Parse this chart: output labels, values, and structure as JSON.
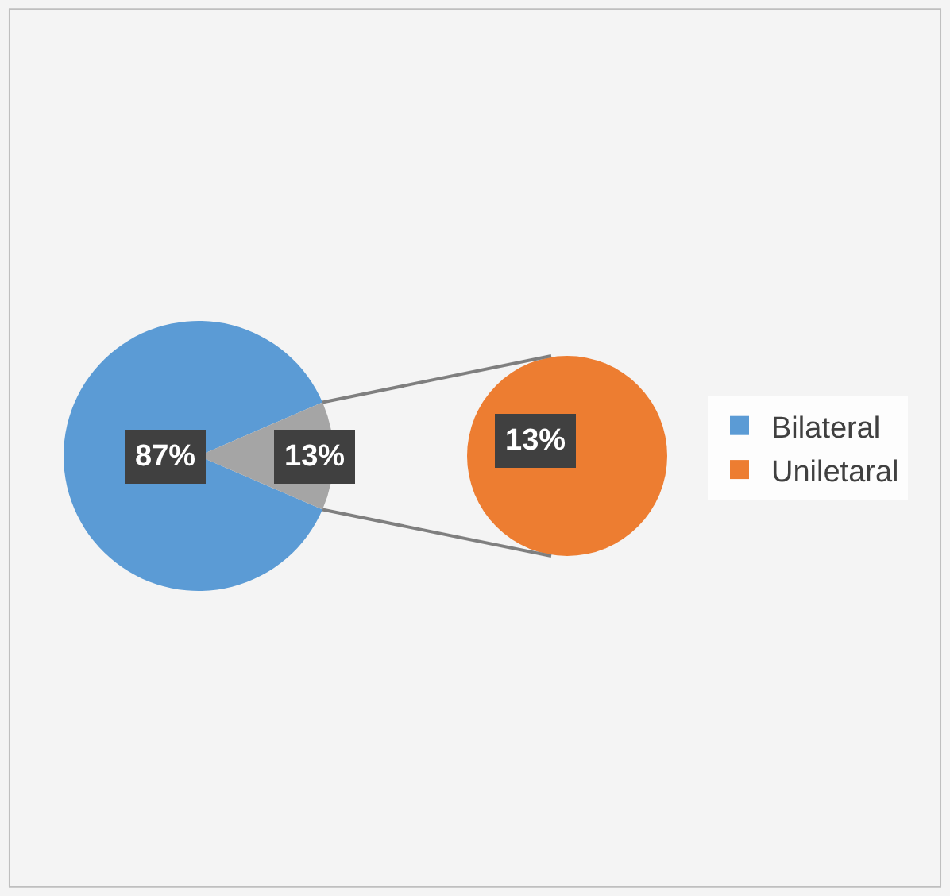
{
  "chart_data": [
    {
      "type": "pie",
      "categories": [
        "Bilateral",
        null
      ],
      "values": [
        87,
        13
      ],
      "colors": [
        "#5b9bd5",
        "#a5a5a5"
      ],
      "value_labels": [
        "87%",
        "13%"
      ],
      "legend": "right"
    },
    {
      "type": "pie",
      "categories": [
        "Uniletaral"
      ],
      "values": [
        13
      ],
      "colors": [
        "#ed7d31"
      ],
      "value_labels": [
        "13%"
      ],
      "legend": "right"
    }
  ]
}
